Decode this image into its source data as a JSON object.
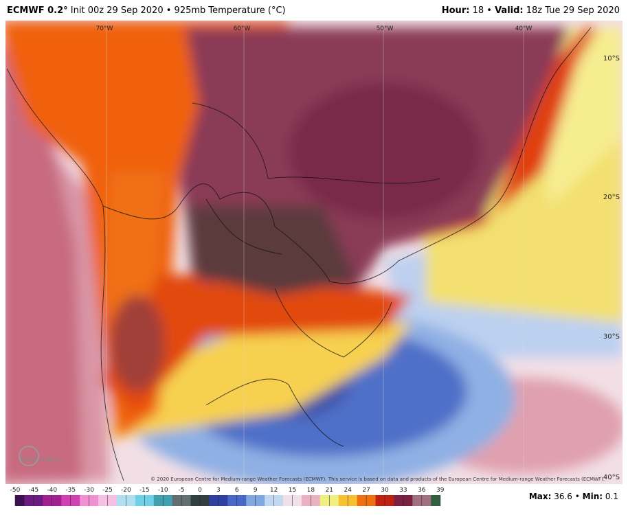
{
  "header": {
    "model": "ECMWF 0.2°",
    "title": "Init 00z 29 Sep 2020",
    "separator": "•",
    "field": "925mb Temperature (°C)",
    "hour_label": "Hour:",
    "hour": "18",
    "valid_label": "Valid:",
    "valid": "18z Tue 29 Sep 2020"
  },
  "map": {
    "lon_labels": [
      "70°W",
      "60°W",
      "50°W",
      "40°W"
    ],
    "lat_labels": [
      "10°S",
      "20°S",
      "30°S",
      "40°S"
    ],
    "credit": "© 2020 European Centre for Medium-range Weather Forecasts (ECMWF). This service is based on data and products of the European Centre for Medium-range Weather Forecasts (ECMWF).",
    "logo": "WeatherBELL"
  },
  "colorbar": {
    "ticks": [
      -50,
      -45,
      -40,
      -35,
      -30,
      -25,
      -20,
      -15,
      -10,
      -5,
      0,
      3,
      6,
      9,
      12,
      15,
      18,
      21,
      24,
      27,
      30,
      33,
      36,
      39
    ]
  },
  "stats": {
    "max_label": "Max:",
    "max": 36.6,
    "min_label": "Min:",
    "min": 0.1
  }
}
